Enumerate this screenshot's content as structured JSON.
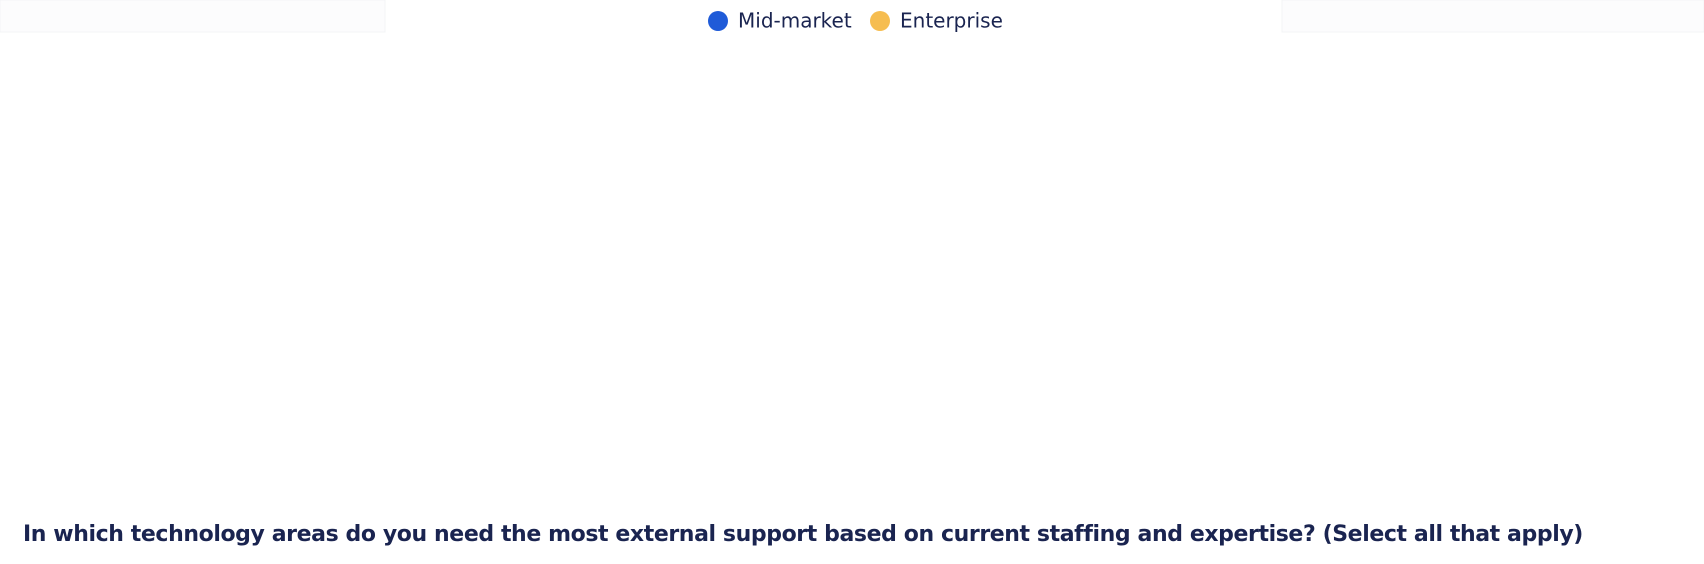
{
  "chart_data": {
    "type": "bar",
    "categories": [
      null,
      null,
      null,
      null,
      null
    ],
    "series": [
      {
        "name": "Mid-market",
        "color": "#1f5bd8",
        "values": [
          0,
          0,
          0,
          0,
          0
        ]
      },
      {
        "name": "Enterprise",
        "color": "#f6bd50",
        "values": [
          0,
          0,
          0,
          0,
          0
        ]
      }
    ],
    "ylim": [
      0,
      100
    ]
  },
  "question": "In which technology areas do you need the most external support based on current staffing and expertise? (Select all that apply)"
}
